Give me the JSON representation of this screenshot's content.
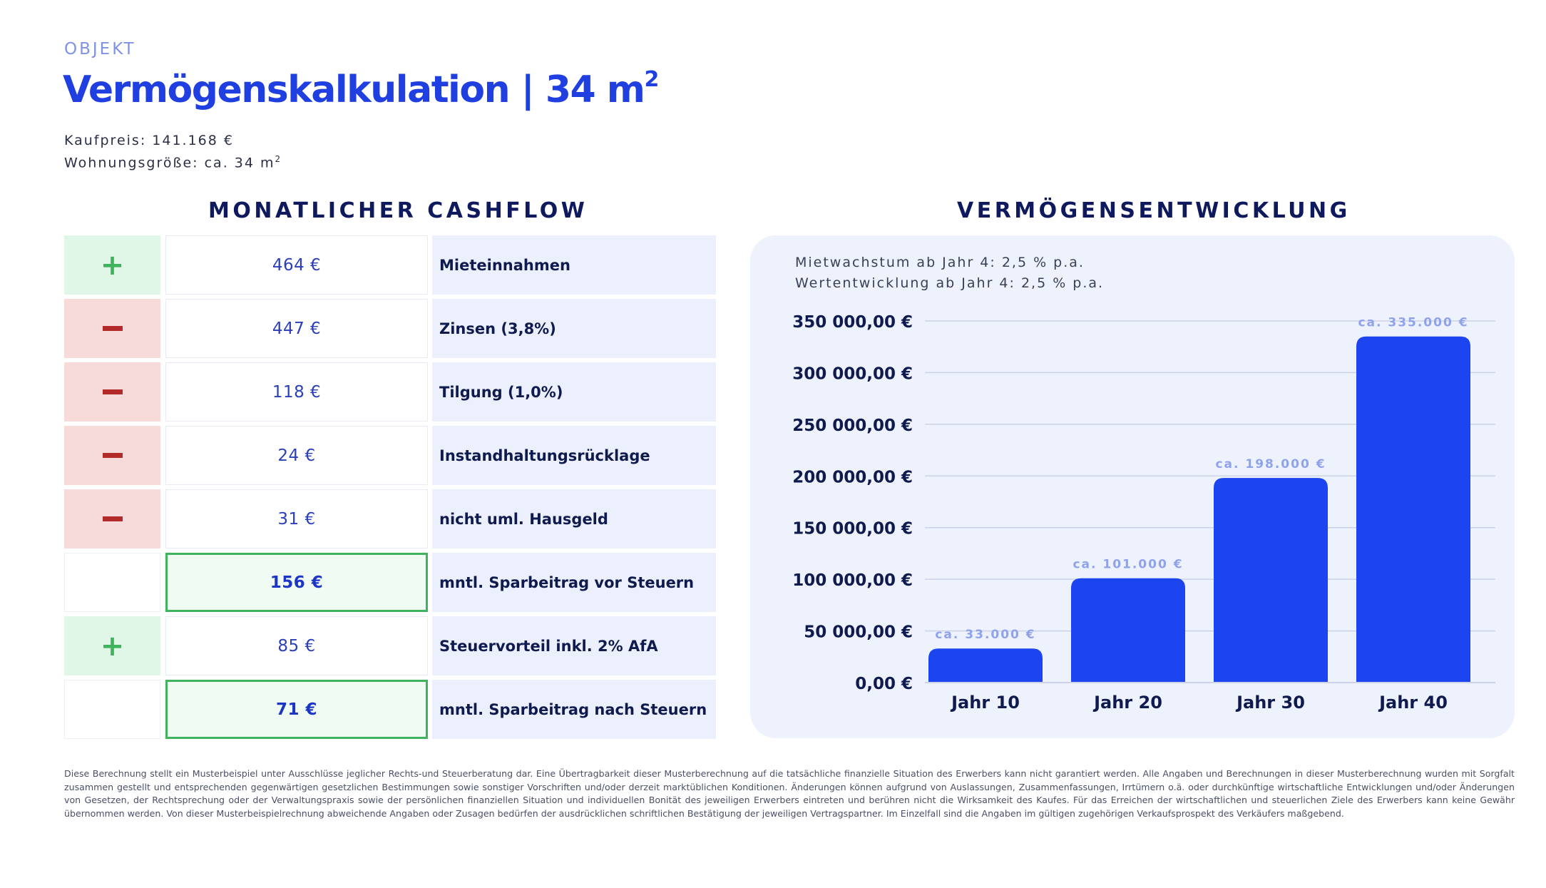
{
  "header": {
    "eyebrow": "OBJEKT",
    "title": "Vermögenskalkulation | 34 m",
    "title_sup": "2",
    "kaufpreis": "Kaufpreis: 141.168 €",
    "wohnungsgroesse": "Wohnungsgröße: ca. 34 m",
    "wohnungsgroesse_sup": "2"
  },
  "cashflow": {
    "title": "MONATLICHER CASHFLOW",
    "rows": [
      {
        "sign": "plus",
        "amount": "464 €",
        "label": "Mieteinnahmen",
        "highlight": false
      },
      {
        "sign": "minus",
        "amount": "447 €",
        "label": "Zinsen (3,8%)",
        "highlight": false
      },
      {
        "sign": "minus",
        "amount": "118 €",
        "label": "Tilgung (1,0%)",
        "highlight": false
      },
      {
        "sign": "minus",
        "amount": "24 €",
        "label": "Instandhaltungsrücklage",
        "highlight": false
      },
      {
        "sign": "minus",
        "amount": "31 €",
        "label": "nicht uml. Hausgeld",
        "highlight": false
      },
      {
        "sign": "none",
        "amount": "156 €",
        "label": "mntl. Sparbeitrag vor Steuern",
        "highlight": true
      },
      {
        "sign": "plus",
        "amount": "85 €",
        "label": "Steuervorteil inkl. 2% AfA",
        "highlight": false
      },
      {
        "sign": "none",
        "amount": "71 €",
        "label": "mntl. Sparbeitrag nach Steuern",
        "highlight": true
      }
    ]
  },
  "wealth": {
    "title": "VERMÖGENSENTWICKLUNG",
    "note1": "Mietwachstum ab Jahr 4: 2,5 % p.a.",
    "note2": "Wertentwicklung ab Jahr 4: 2,5 % p.a."
  },
  "chart_data": {
    "type": "bar",
    "title": "VERMÖGENSENTWICKLUNG",
    "categories": [
      "Jahr 10",
      "Jahr 20",
      "Jahr 30",
      "Jahr 40"
    ],
    "values": [
      33000,
      101000,
      198000,
      335000
    ],
    "data_labels": [
      "ca. 33.000 €",
      "ca. 101.000 €",
      "ca. 198.000 €",
      "ca. 335.000 €"
    ],
    "y_ticks": [
      0,
      50000,
      100000,
      150000,
      200000,
      250000,
      300000,
      350000
    ],
    "y_tick_labels": [
      "0,00 €",
      "50 000,00 €",
      "100 000,00 €",
      "150 000,00 €",
      "200 000,00 €",
      "250 000,00 €",
      "300 000,00 €",
      "350 000,00 €"
    ],
    "ylim": [
      0,
      350000
    ],
    "grid": true,
    "legend": "none",
    "colors": {
      "bar": "#1c44ef",
      "data_label": "#8fa2ec",
      "grid": "#cdd3e6",
      "tick_text": "#0f1a4e"
    }
  },
  "disclaimer": "Diese Berechnung stellt ein Musterbeispiel unter Ausschlüsse jeglicher Rechts-und Steuerberatung dar. Eine Übertragbarkeit dieser Musterberechnung auf die tatsächliche finanzielle Situation des Erwerbers kann nicht garantiert werden. Alle Angaben und Berechnungen in dieser Musterberechnung wurden mit Sorgfalt zusammen gestellt und entsprechenden gegenwärtigen gesetzlichen Bestimmungen sowie sonstiger Vorschriften und/oder derzeit marktüblichen Konditionen. Änderungen können aufgrund von Auslassungen, Zusammenfassungen, Irrtümern o.ä. oder durchkünftige wirtschaftliche Entwicklungen und/oder Änderungen von Gesetzen, der Rechtsprechung oder der Verwaltungspraxis sowie der persönlichen finanziellen Situation und individuellen Bonität des jeweiligen Erwerbers eintreten und berühren nicht die Wirksamkeit des Kaufes. Für das Erreichen der wirtschaftlichen und steuerlichen Ziele des Erwerbers kann keine Gewähr übernommen werden. Von dieser Musterbeispielrechnung abweichende Angaben oder Zusagen bedürfen der ausdrücklichen schriftlichen Bestätigung der jeweiligen Vertragspartner. Im Einzelfall sind die Angaben im gültigen zugehörigen Verkaufsprospekt des Verkäufers maßgebend."
}
